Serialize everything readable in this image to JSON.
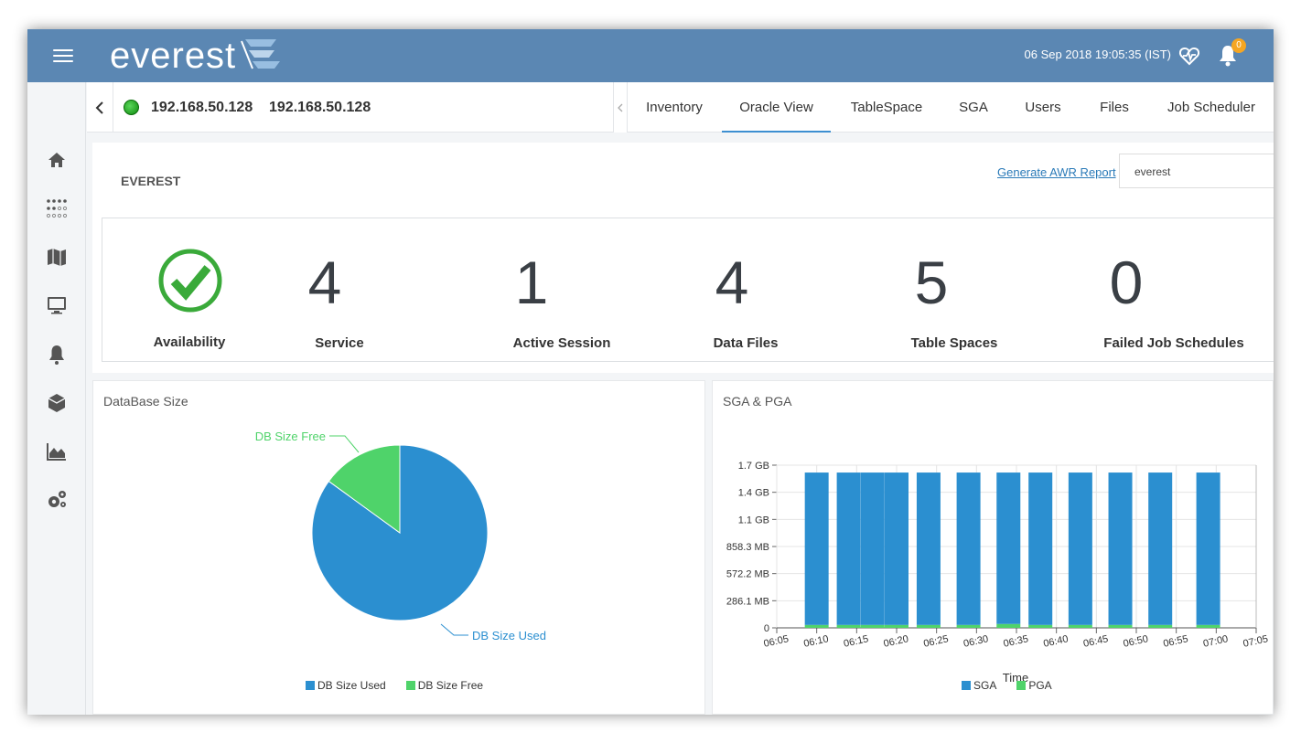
{
  "header": {
    "logo_text": "everest",
    "datetime": "06 Sep 2018 19:05:35 (IST)",
    "notification_count": "0"
  },
  "sidebar": {
    "items": [
      {
        "icon": "home-icon"
      },
      {
        "icon": "grid-dots-icon"
      },
      {
        "icon": "map-icon"
      },
      {
        "icon": "monitor-icon"
      },
      {
        "icon": "bell-icon"
      },
      {
        "icon": "cube-icon"
      },
      {
        "icon": "area-chart-icon"
      },
      {
        "icon": "gears-icon"
      }
    ]
  },
  "host": {
    "ip": "192.168.50.128",
    "name": "192.168.50.128"
  },
  "tabs": [
    {
      "label": "Inventory"
    },
    {
      "label": "Oracle View"
    },
    {
      "label": "TableSpace"
    },
    {
      "label": "SGA"
    },
    {
      "label": "Users"
    },
    {
      "label": "Files"
    },
    {
      "label": "Job Scheduler"
    }
  ],
  "active_tab": "Oracle View",
  "database": {
    "title": "EVEREST",
    "awr_link": "Generate AWR Report",
    "selected_db": "everest"
  },
  "stats": [
    {
      "label": "Availability",
      "value": ""
    },
    {
      "label": "Service",
      "value": "4"
    },
    {
      "label": "Active Session",
      "value": "1"
    },
    {
      "label": "Data Files",
      "value": "4"
    },
    {
      "label": "Table Spaces",
      "value": "5"
    },
    {
      "label": "Failed Job Schedules",
      "value": "0"
    }
  ],
  "colors": {
    "header": "#5b87b3",
    "used": "#2b8fd0",
    "free": "#4fd36a",
    "ok": "#3aaa3a"
  },
  "chart_data": [
    {
      "type": "pie",
      "title": "DataBase Size",
      "slices": [
        {
          "label": "DB Size Used",
          "value": 85
        },
        {
          "label": "DB Size Free",
          "value": 15
        }
      ],
      "legend": [
        "DB Size Used",
        "DB Size Free"
      ],
      "legend_placement": "bottom"
    },
    {
      "type": "bar",
      "stacked": true,
      "title": "SGA & PGA",
      "xlabel": "Time",
      "x_ticks": [
        "06:05",
        "06:10",
        "06:15",
        "06:20",
        "06:25",
        "06:30",
        "06:35",
        "06:40",
        "06:45",
        "06:50",
        "06:55",
        "07:00",
        "07:05"
      ],
      "y_ticks": [
        "0",
        "286.1 MB",
        "572.2 MB",
        "858.3 MB",
        "1.1 GB",
        "1.4 GB",
        "1.7 GB"
      ],
      "y_unit": "GB",
      "ylim": [
        0,
        1.676
      ],
      "grid": true,
      "legend_placement": "bottom",
      "bars": [
        {
          "time": "06:10",
          "SGA": 1.57,
          "PGA": 0.03
        },
        {
          "time": "06:14",
          "SGA": 1.57,
          "PGA": 0.03
        },
        {
          "time": "06:17",
          "SGA": 1.57,
          "PGA": 0.03
        },
        {
          "time": "06:20",
          "SGA": 1.57,
          "PGA": 0.03
        },
        {
          "time": "06:24",
          "SGA": 1.57,
          "PGA": 0.03
        },
        {
          "time": "06:29",
          "SGA": 1.57,
          "PGA": 0.03
        },
        {
          "time": "06:34",
          "SGA": 1.56,
          "PGA": 0.04
        },
        {
          "time": "06:38",
          "SGA": 1.57,
          "PGA": 0.03
        },
        {
          "time": "06:43",
          "SGA": 1.57,
          "PGA": 0.03
        },
        {
          "time": "06:48",
          "SGA": 1.57,
          "PGA": 0.03
        },
        {
          "time": "06:53",
          "SGA": 1.57,
          "PGA": 0.03
        },
        {
          "time": "06:59",
          "SGA": 1.57,
          "PGA": 0.03
        }
      ],
      "series": [
        {
          "name": "SGA",
          "color": "#2b8fd0"
        },
        {
          "name": "PGA",
          "color": "#4fd36a"
        }
      ]
    }
  ]
}
